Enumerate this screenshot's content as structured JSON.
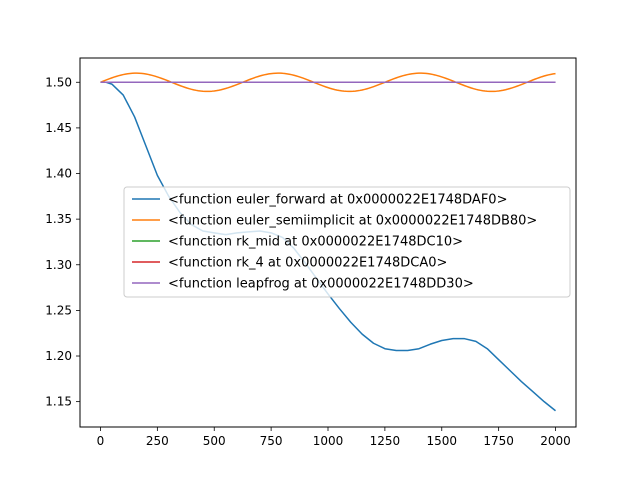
{
  "chart_data": {
    "type": "line",
    "title": "",
    "xlabel": "",
    "ylabel": "",
    "xlim": [
      -90,
      2090
    ],
    "ylim": [
      1.1222,
      1.5266
    ],
    "x_ticks": [
      0,
      250,
      500,
      750,
      1000,
      1250,
      1500,
      1750,
      2000
    ],
    "y_ticks": [
      1.15,
      1.2,
      1.25,
      1.3,
      1.35,
      1.4,
      1.45,
      1.5
    ],
    "grid": false,
    "legend_position": "center-right",
    "series": [
      {
        "name": "<function euler_forward at 0x0000022E1748DAF0>",
        "color": "#1f77b4",
        "x": [
          0,
          25,
          50,
          100,
          150,
          200,
          250,
          300,
          350,
          400,
          450,
          500,
          550,
          600,
          650,
          700,
          750,
          800,
          850,
          900,
          950,
          1000,
          1050,
          1100,
          1150,
          1200,
          1250,
          1300,
          1350,
          1400,
          1450,
          1500,
          1550,
          1600,
          1650,
          1700,
          1750,
          1800,
          1850,
          1900,
          1950,
          2000
        ],
        "y": [
          1.5,
          1.5,
          1.498,
          1.486,
          1.462,
          1.43,
          1.398,
          1.375,
          1.357,
          1.344,
          1.337,
          1.335,
          1.333,
          1.335,
          1.336,
          1.337,
          1.335,
          1.33,
          1.318,
          1.302,
          1.285,
          1.268,
          1.252,
          1.237,
          1.224,
          1.214,
          1.208,
          1.206,
          1.206,
          1.208,
          1.213,
          1.217,
          1.219,
          1.219,
          1.216,
          1.208,
          1.196,
          1.184,
          1.172,
          1.161,
          1.15,
          1.14
        ]
      },
      {
        "name": "<function euler_semiimplicit at 0x0000022E1748DB80>",
        "color": "#ff7f0e",
        "amplitude": 0.01,
        "period": 625,
        "offset": 1.5,
        "x_range": [
          0,
          2000
        ]
      },
      {
        "name": "<function rk_mid at 0x0000022E1748DC10>",
        "color": "#2ca02c",
        "x": [
          0,
          2000
        ],
        "y": [
          1.5,
          1.5
        ]
      },
      {
        "name": "<function rk_4 at 0x0000022E1748DCA0>",
        "color": "#d62728",
        "x": [
          0,
          2000
        ],
        "y": [
          1.5,
          1.5
        ]
      },
      {
        "name": "<function leapfrog at 0x0000022E1748DD30>",
        "color": "#9467bd",
        "x": [
          0,
          2000
        ],
        "y": [
          1.5,
          1.5
        ]
      }
    ]
  }
}
